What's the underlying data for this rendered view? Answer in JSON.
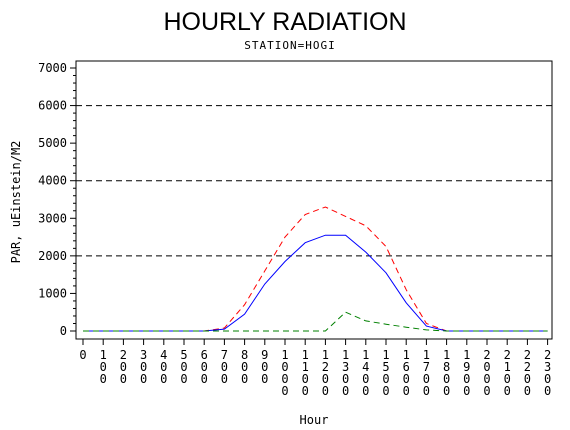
{
  "chart_data": {
    "type": "line",
    "title": "HOURLY RADIATION",
    "subtitle": "STATION=HOGI",
    "xlabel": "Hour",
    "ylabel": "PAR, uEinstein/M2",
    "ylim": [
      0,
      7000
    ],
    "yticks": [
      "0",
      "1000",
      "2000",
      "3000",
      "4000",
      "5000",
      "6000",
      "7000"
    ],
    "grid_lines_y": [
      2000,
      4000,
      6000
    ],
    "x": [
      0,
      100,
      200,
      300,
      400,
      500,
      600,
      700,
      800,
      900,
      1000,
      1100,
      1200,
      1300,
      1400,
      1500,
      1600,
      1700,
      1800,
      1900,
      2000,
      2100,
      2200,
      2300
    ],
    "xtick_labels": [
      "0",
      "100",
      "200",
      "300",
      "400",
      "500",
      "600",
      "700",
      "800",
      "900",
      "1000",
      "1100",
      "1200",
      "1300",
      "1400",
      "1500",
      "1600",
      "1700",
      "1800",
      "1900",
      "2000",
      "2100",
      "2200",
      "2300"
    ],
    "series": [
      {
        "color": "#ff0000",
        "dash": "dashed",
        "values": [
          0,
          0,
          0,
          0,
          0,
          0,
          0,
          80,
          700,
          1600,
          2500,
          3100,
          3300,
          3050,
          2800,
          2250,
          1100,
          200,
          0,
          0,
          0,
          0,
          0,
          0
        ]
      },
      {
        "color": "#0000ff",
        "dash": "solid",
        "values": [
          0,
          0,
          0,
          0,
          0,
          0,
          0,
          50,
          450,
          1250,
          1850,
          2350,
          2550,
          2550,
          2100,
          1550,
          750,
          130,
          0,
          0,
          0,
          0,
          0,
          0
        ]
      },
      {
        "color": "#008000",
        "dash": "dashed",
        "values": [
          0,
          0,
          0,
          0,
          0,
          0,
          0,
          0,
          0,
          0,
          0,
          0,
          0,
          500,
          270,
          180,
          100,
          30,
          0,
          0,
          0,
          0,
          0,
          0
        ]
      }
    ]
  }
}
